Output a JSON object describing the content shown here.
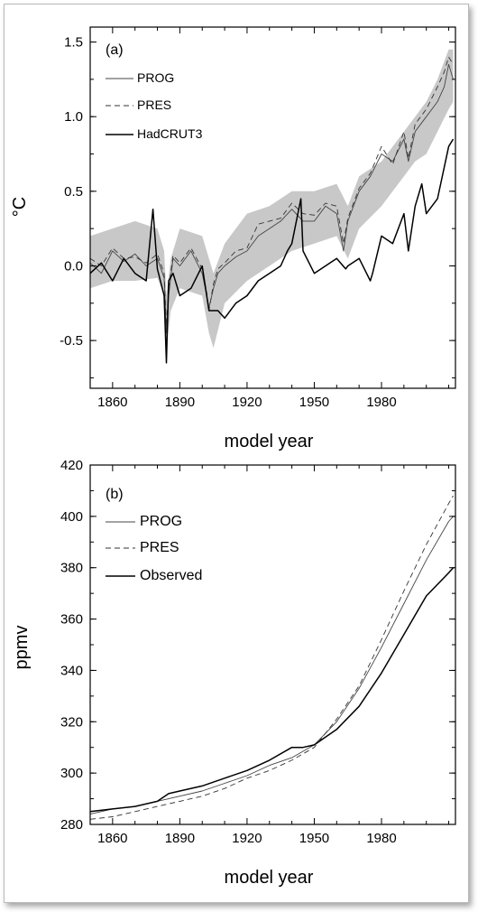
{
  "colors": {
    "axis": "#000000",
    "band": "#c8c8c8",
    "prog": "#444444",
    "pres": "#333333",
    "obs": "#000000"
  },
  "chart_data": [
    {
      "type": "line",
      "panel_label": "(a)",
      "xlabel": "model year",
      "ylabel": "°C",
      "xlim": [
        1850,
        2013
      ],
      "ylim": [
        -0.82,
        1.6
      ],
      "xticks": [
        1860,
        1890,
        1920,
        1950,
        1980
      ],
      "xtick_labels": [
        "1860",
        "1890",
        "1920",
        "1950",
        "1980"
      ],
      "yticks": [
        -0.5,
        0.0,
        0.5,
        1.0,
        1.5
      ],
      "ytick_labels": [
        "-0.5",
        "0.0",
        "0.5",
        "1.0",
        "1.5"
      ],
      "legend_position": "top-left",
      "series": [
        {
          "name": "PROG",
          "style": "thin-solid",
          "x": [
            1850,
            1855,
            1860,
            1865,
            1870,
            1875,
            1880,
            1883,
            1884,
            1885,
            1887,
            1890,
            1895,
            1900,
            1902,
            1903,
            1905,
            1907,
            1910,
            1915,
            1920,
            1925,
            1930,
            1935,
            1940,
            1945,
            1950,
            1955,
            1960,
            1963,
            1965,
            1970,
            1975,
            1980,
            1985,
            1990,
            1992,
            1995,
            2000,
            2005,
            2008,
            2010,
            2012
          ],
          "y": [
            0.02,
            -0.05,
            0.1,
            0.03,
            0.08,
            0.0,
            0.05,
            -0.08,
            -0.45,
            -0.2,
            0.05,
            0.0,
            0.1,
            -0.05,
            -0.2,
            -0.28,
            -0.15,
            -0.05,
            0.0,
            0.06,
            0.1,
            0.2,
            0.25,
            0.3,
            0.38,
            0.3,
            0.3,
            0.4,
            0.35,
            0.1,
            0.3,
            0.5,
            0.6,
            0.75,
            0.7,
            0.85,
            0.7,
            0.9,
            1.0,
            1.1,
            1.2,
            1.35,
            1.25
          ]
        },
        {
          "name": "PRES",
          "style": "dashed",
          "x": [
            1850,
            1855,
            1860,
            1865,
            1870,
            1875,
            1880,
            1883,
            1884,
            1885,
            1887,
            1890,
            1895,
            1900,
            1902,
            1903,
            1905,
            1907,
            1910,
            1915,
            1920,
            1925,
            1930,
            1935,
            1940,
            1945,
            1950,
            1955,
            1960,
            1963,
            1965,
            1970,
            1975,
            1980,
            1985,
            1990,
            1992,
            1995,
            2000,
            2005,
            2008,
            2010,
            2012
          ],
          "y": [
            0.05,
            0.0,
            0.12,
            0.05,
            0.06,
            0.02,
            0.08,
            -0.05,
            -0.4,
            -0.15,
            0.07,
            0.02,
            0.12,
            -0.02,
            -0.18,
            -0.3,
            -0.12,
            -0.02,
            0.02,
            0.1,
            0.12,
            0.28,
            0.3,
            0.32,
            0.42,
            0.35,
            0.34,
            0.42,
            0.4,
            0.15,
            0.32,
            0.52,
            0.62,
            0.8,
            0.68,
            0.9,
            0.72,
            0.95,
            1.05,
            1.2,
            1.3,
            1.4,
            1.35
          ]
        },
        {
          "name": "HadCRUT3",
          "style": "thick-solid",
          "x": [
            1850,
            1855,
            1860,
            1865,
            1870,
            1875,
            1878,
            1880,
            1883,
            1884,
            1885,
            1887,
            1890,
            1895,
            1900,
            1902,
            1903,
            1905,
            1907,
            1910,
            1915,
            1920,
            1925,
            1930,
            1935,
            1938,
            1940,
            1944,
            1945,
            1950,
            1955,
            1960,
            1964,
            1965,
            1970,
            1975,
            1976,
            1980,
            1985,
            1990,
            1992,
            1995,
            1998,
            2000,
            2005,
            2010,
            2012
          ],
          "y": [
            -0.05,
            0.02,
            -0.1,
            0.05,
            -0.05,
            -0.1,
            0.38,
            -0.02,
            -0.2,
            -0.65,
            -0.1,
            -0.05,
            -0.2,
            -0.15,
            0.0,
            -0.2,
            -0.3,
            -0.3,
            -0.3,
            -0.35,
            -0.25,
            -0.2,
            -0.1,
            -0.05,
            0.0,
            0.1,
            0.15,
            0.45,
            0.1,
            -0.05,
            0.0,
            0.05,
            -0.02,
            0.0,
            0.05,
            -0.1,
            -0.05,
            0.2,
            0.15,
            0.35,
            0.1,
            0.4,
            0.55,
            0.35,
            0.45,
            0.8,
            0.85
          ]
        }
      ],
      "band": {
        "x": [
          1850,
          1860,
          1870,
          1880,
          1883,
          1884,
          1886,
          1890,
          1900,
          1903,
          1905,
          1910,
          1920,
          1930,
          1940,
          1950,
          1960,
          1965,
          1970,
          1980,
          1990,
          1995,
          2000,
          2005,
          2010,
          2012
        ],
        "lower": [
          -0.15,
          -0.1,
          -0.1,
          -0.08,
          -0.2,
          -0.55,
          -0.3,
          -0.15,
          -0.2,
          -0.45,
          -0.55,
          -0.25,
          -0.1,
          0.0,
          0.1,
          0.15,
          0.2,
          0.05,
          0.25,
          0.4,
          0.6,
          0.7,
          0.75,
          0.9,
          1.05,
          1.1
        ],
        "upper": [
          0.2,
          0.25,
          0.3,
          0.25,
          0.1,
          -0.2,
          0.05,
          0.25,
          0.2,
          0.05,
          -0.05,
          0.15,
          0.35,
          0.4,
          0.5,
          0.5,
          0.55,
          0.4,
          0.6,
          0.7,
          0.9,
          1.0,
          1.1,
          1.25,
          1.45,
          1.45
        ]
      }
    },
    {
      "type": "line",
      "panel_label": "(b)",
      "xlabel": "model year",
      "ylabel": "ppmv",
      "xlim": [
        1850,
        2013
      ],
      "ylim": [
        280,
        420
      ],
      "xticks": [
        1860,
        1890,
        1920,
        1950,
        1980
      ],
      "xtick_labels": [
        "1860",
        "1890",
        "1920",
        "1950",
        "1980"
      ],
      "yticks": [
        280,
        300,
        320,
        340,
        360,
        380,
        400,
        420
      ],
      "ytick_labels": [
        "280",
        "300",
        "320",
        "340",
        "360",
        "380",
        "400",
        "420"
      ],
      "legend_position": "top-left",
      "series": [
        {
          "name": "PROG",
          "style": "thin-solid",
          "x": [
            1850,
            1860,
            1870,
            1880,
            1890,
            1900,
            1910,
            1920,
            1930,
            1940,
            1950,
            1960,
            1970,
            1980,
            1990,
            2000,
            2010,
            2012
          ],
          "y": [
            284,
            286,
            287,
            289,
            291,
            293,
            296,
            299,
            303,
            306,
            311,
            320,
            333,
            349,
            366,
            383,
            398,
            400
          ]
        },
        {
          "name": "PRES",
          "style": "dashed",
          "x": [
            1850,
            1860,
            1870,
            1880,
            1890,
            1900,
            1910,
            1920,
            1930,
            1940,
            1950,
            1960,
            1970,
            1980,
            1990,
            2000,
            2010,
            2012
          ],
          "y": [
            282,
            283,
            285,
            287,
            289,
            291,
            294,
            298,
            301,
            305,
            310,
            321,
            334,
            352,
            371,
            389,
            405,
            408
          ]
        },
        {
          "name": "Observed",
          "style": "thick-solid",
          "x": [
            1850,
            1860,
            1870,
            1880,
            1885,
            1890,
            1900,
            1910,
            1920,
            1930,
            1940,
            1945,
            1950,
            1960,
            1970,
            1980,
            1990,
            2000,
            2010,
            2012
          ],
          "y": [
            285,
            286,
            287,
            289,
            292,
            293,
            295,
            298,
            301,
            305,
            310,
            310,
            311,
            317,
            326,
            339,
            354,
            369,
            378,
            380
          ]
        }
      ]
    }
  ]
}
